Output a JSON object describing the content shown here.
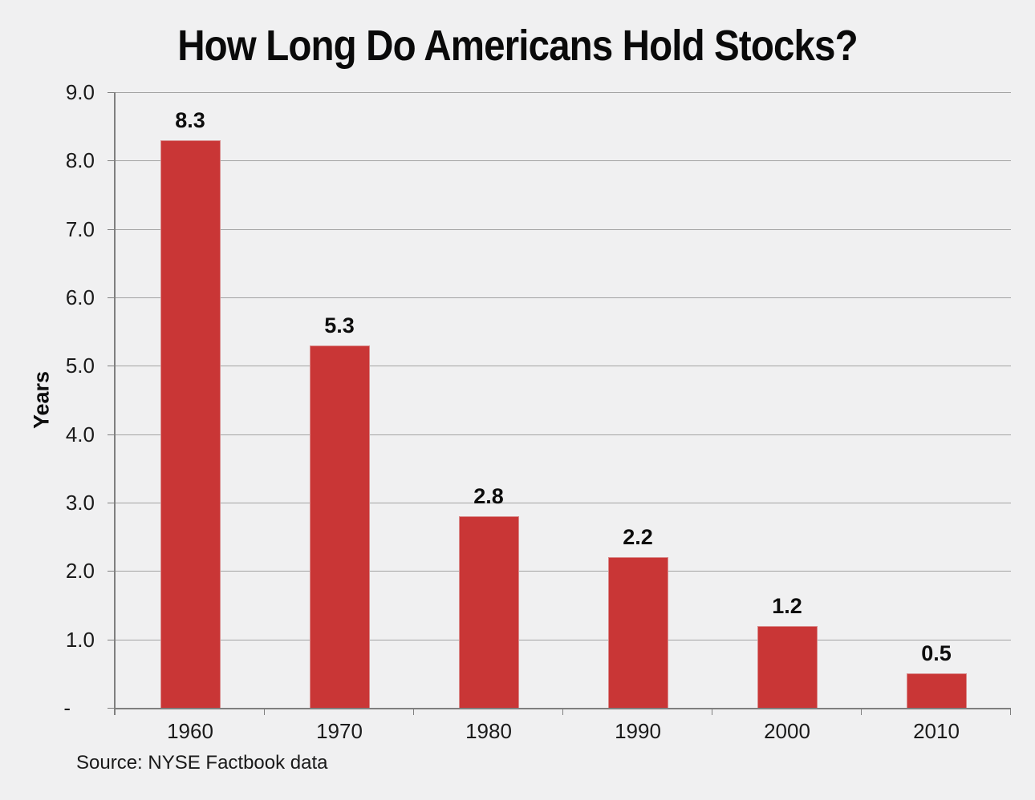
{
  "chart_data": {
    "type": "bar",
    "title": "How Long Do Americans Hold Stocks?",
    "categories": [
      "1960",
      "1970",
      "1980",
      "1990",
      "2000",
      "2010"
    ],
    "values": [
      8.3,
      5.3,
      2.8,
      2.2,
      1.2,
      0.5
    ],
    "data_labels": [
      "8.3",
      "5.3",
      "2.8",
      "2.2",
      "1.2",
      "0.5"
    ],
    "xlabel": "",
    "ylabel": "Years",
    "ylim": [
      0,
      9
    ],
    "yticks": [
      {
        "value": 9,
        "label": "9.0"
      },
      {
        "value": 8,
        "label": "8.0"
      },
      {
        "value": 7,
        "label": "7.0"
      },
      {
        "value": 6,
        "label": "6.0"
      },
      {
        "value": 5,
        "label": "5.0"
      },
      {
        "value": 4,
        "label": "4.0"
      },
      {
        "value": 3,
        "label": "3.0"
      },
      {
        "value": 2,
        "label": "2.0"
      },
      {
        "value": 1,
        "label": "1.0"
      },
      {
        "value": 0,
        "label": "-"
      }
    ],
    "grid": "horizontal",
    "legend": "none",
    "source_note": "Source: NYSE Factbook data",
    "colors": {
      "bar": "#C93636",
      "bar_edge": "#D98B8B",
      "background": "#F0F0F1",
      "gridline": "#A3A3A3",
      "axis": "#7F7F7F",
      "text": "#111111"
    }
  }
}
